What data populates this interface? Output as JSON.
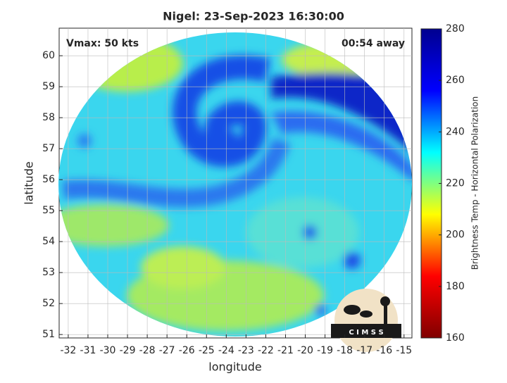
{
  "chart_data": {
    "type": "image",
    "title": "Nigel: 23-Sep-2023 16:30:00",
    "annotations": [
      "Vmax: 50 kts",
      "00:54 away"
    ],
    "x_label": "longitude",
    "y_label": "latitude",
    "xlim": [
      -32.46,
      -14.6
    ],
    "ylim": [
      50.89,
      60.89
    ],
    "xticks": [
      -32,
      -31,
      -30,
      -29,
      -28,
      -27,
      -26,
      -25,
      -24,
      -23,
      -22,
      -21,
      -20,
      -19,
      -18,
      -17,
      -16,
      -15
    ],
    "yticks": [
      51,
      52,
      53,
      54,
      55,
      56,
      57,
      58,
      59,
      60
    ],
    "grid": true,
    "colorbar": {
      "label": "Brightness Temp - Horizontal Polarization",
      "clim": [
        160,
        280
      ],
      "ticks": [
        160,
        180,
        200,
        220,
        240,
        260,
        280
      ],
      "colors": [
        "#800000",
        "#ff0000",
        "#ffff00",
        "#00ffff",
        "#0000ff",
        "#00008f"
      ]
    },
    "logo": "C I M S S"
  }
}
